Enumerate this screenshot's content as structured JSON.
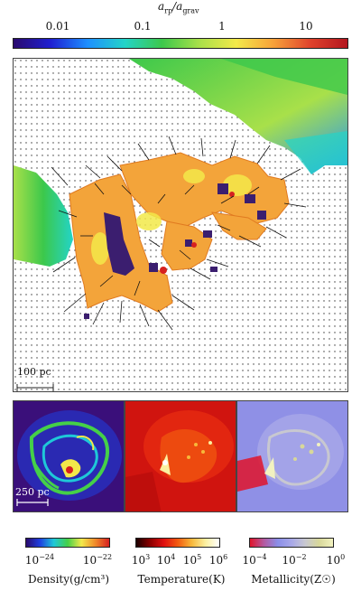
{
  "top_colorbar": {
    "title": "a_rp/a_grav",
    "title_main": "a",
    "title_sub1": "rp",
    "title_sep": "/a",
    "title_sub2": "grav",
    "ticks": [
      "0.01",
      "0.1",
      "1",
      "10"
    ],
    "scale": "log",
    "colors": [
      "#2a0a6e",
      "#1f1fd1",
      "#1e90ff",
      "#23d4c8",
      "#3cc84b",
      "#a8e04a",
      "#f3e94a",
      "#f7a23a",
      "#e0432c",
      "#b3161f"
    ]
  },
  "main_panel": {
    "scale_bar_label": "100 pc",
    "background": "#ffffff",
    "green_color": "#3cc84b",
    "orange_color": "#f3a43a",
    "indigo_color": "#3b1e6f"
  },
  "small_panels": {
    "scale_bar_label": "250 pc",
    "density_bg": "#3a0f7a",
    "temperature_bg": "#d0140f",
    "metallicity_bg": "#8f90e6"
  },
  "bottom_colorbars": [
    {
      "name": "density",
      "label": "Density(g/cm³)",
      "ticks": [
        {
          "base": "10",
          "exp": "−24"
        },
        {
          "base": "10",
          "exp": "−22"
        }
      ],
      "colors": [
        "#2a0a6e",
        "#1e40e0",
        "#1ec8d8",
        "#45d048",
        "#f3e94a",
        "#f08a2a",
        "#d62020"
      ]
    },
    {
      "name": "temperature",
      "label": "Temperature(K)",
      "ticks": [
        {
          "base": "10",
          "exp": "3"
        },
        {
          "base": "10",
          "exp": "4"
        },
        {
          "base": "10",
          "exp": "5"
        },
        {
          "base": "10",
          "exp": "6"
        }
      ],
      "colors": [
        "#1a0000",
        "#8a0000",
        "#e01010",
        "#f25a10",
        "#f7b83a",
        "#fbf0a0",
        "#ffffff"
      ]
    },
    {
      "name": "metallicity",
      "label": "Metallicity(Z☉)",
      "ticks": [
        {
          "base": "10",
          "exp": "−4"
        },
        {
          "base": "10",
          "exp": "−2"
        },
        {
          "base": "10",
          "exp": "0"
        }
      ],
      "colors": [
        "#e0142a",
        "#b45aa0",
        "#8a8ee8",
        "#a8a8e8",
        "#c8c8d0",
        "#d8d89a",
        "#f2f2c0"
      ]
    }
  ]
}
